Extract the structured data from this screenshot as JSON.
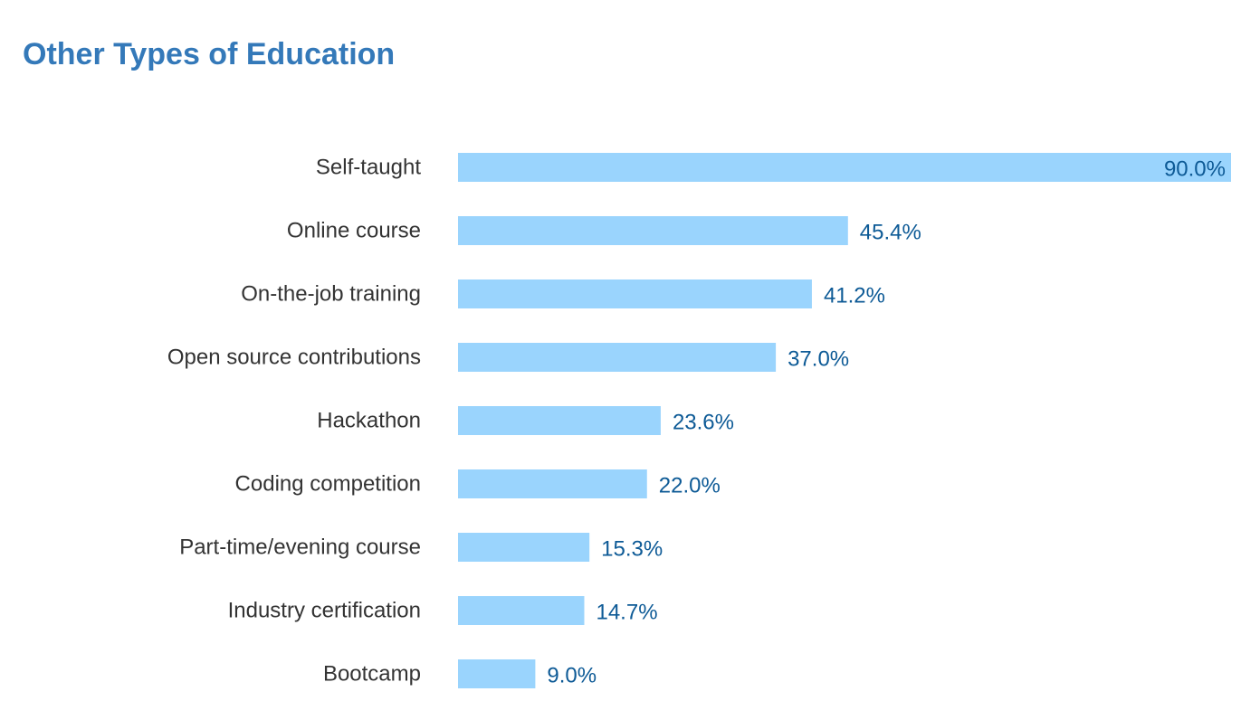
{
  "chart_data": {
    "type": "bar",
    "orientation": "horizontal",
    "title": "Other Types of Education",
    "xlabel": "",
    "ylabel": "",
    "categories": [
      "Self-taught",
      "Online course",
      "On-the-job training",
      "Open source contributions",
      "Hackathon",
      "Coding competition",
      "Part-time/evening course",
      "Industry certification",
      "Bootcamp"
    ],
    "values": [
      90.0,
      45.4,
      41.2,
      37.0,
      23.6,
      22.0,
      15.3,
      14.7,
      9.0
    ],
    "value_labels": [
      "90.0%",
      "45.4%",
      "41.2%",
      "37.0%",
      "23.6%",
      "22.0%",
      "15.3%",
      "14.7%",
      "9.0%"
    ],
    "xlim": [
      0,
      90
    ],
    "grid": false,
    "legend": "none",
    "colors": {
      "title": "#3479b9",
      "bar": "#9ad4fd",
      "category_label": "#333333",
      "value_label": "#0d5a96"
    }
  }
}
